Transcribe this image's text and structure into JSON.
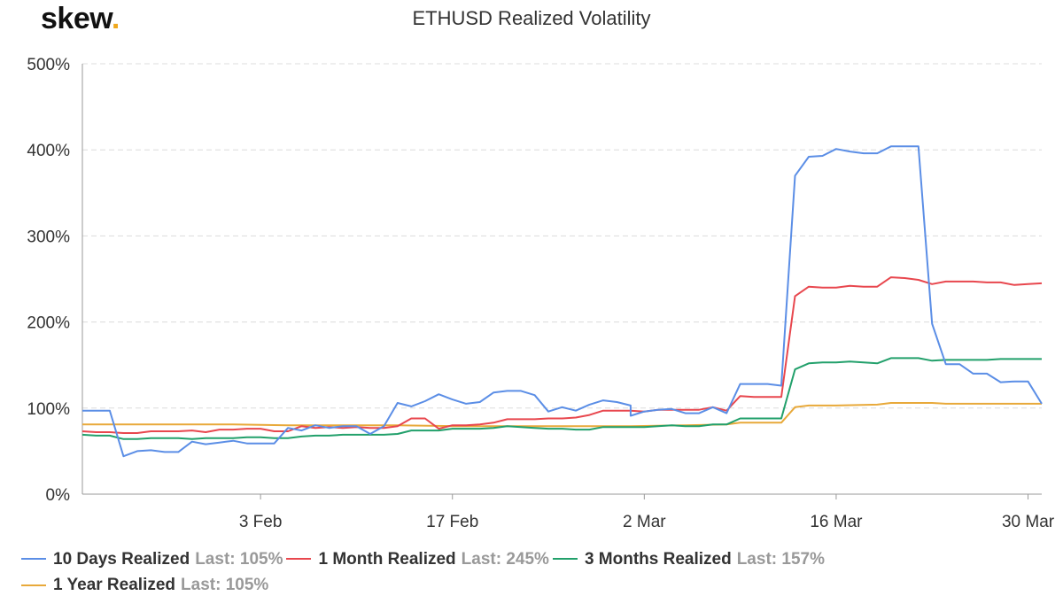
{
  "brand": {
    "name": "skew",
    "dot": "."
  },
  "chart_data": {
    "type": "line",
    "title": "ETHUSD Realized Volatility",
    "xlabel": "",
    "ylabel": "",
    "ylim": [
      0,
      500
    ],
    "y_ticks": [
      "0%",
      "100%",
      "200%",
      "300%",
      "400%",
      "500%"
    ],
    "x_ticks": [
      {
        "label": "3 Feb",
        "x": "2020-02-03"
      },
      {
        "label": "17 Feb",
        "x": "2020-02-17"
      },
      {
        "label": "2 Mar",
        "x": "2020-03-02"
      },
      {
        "label": "16 Mar",
        "x": "2020-03-16"
      },
      {
        "label": "30 Mar",
        "x": "2020-03-30"
      }
    ],
    "xlim": [
      "2020-01-21",
      "2020-03-31"
    ],
    "grid": {
      "horizontal": true,
      "style": "dashed"
    },
    "legend_position": "bottom-left",
    "series": [
      {
        "name": "10 Days Realized",
        "last": "Last: 105%",
        "color": "#5b8ee6",
        "points": [
          [
            "2020-01-21",
            97
          ],
          [
            "2020-01-22",
            97
          ],
          [
            "2020-01-23",
            97
          ],
          [
            "2020-01-24",
            44
          ],
          [
            "2020-01-25",
            50
          ],
          [
            "2020-01-26",
            51
          ],
          [
            "2020-01-27",
            49
          ],
          [
            "2020-01-28",
            49
          ],
          [
            "2020-01-29",
            61
          ],
          [
            "2020-01-30",
            58
          ],
          [
            "2020-01-31",
            60
          ],
          [
            "2020-02-01",
            62
          ],
          [
            "2020-02-02",
            59
          ],
          [
            "2020-02-03",
            59
          ],
          [
            "2020-02-04",
            59
          ],
          [
            "2020-02-05",
            77
          ],
          [
            "2020-02-06",
            74
          ],
          [
            "2020-02-07",
            80
          ],
          [
            "2020-02-08",
            77
          ],
          [
            "2020-02-09",
            79
          ],
          [
            "2020-02-10",
            79
          ],
          [
            "2020-02-11",
            70
          ],
          [
            "2020-02-12",
            79
          ],
          [
            "2020-02-13",
            106
          ],
          [
            "2020-02-14",
            102
          ],
          [
            "2020-02-15",
            108
          ],
          [
            "2020-02-16",
            116
          ],
          [
            "2020-02-17",
            110
          ],
          [
            "2020-02-18",
            105
          ],
          [
            "2020-02-19",
            107
          ],
          [
            "2020-02-20",
            118
          ],
          [
            "2020-02-21",
            120
          ],
          [
            "2020-02-22",
            120
          ],
          [
            "2020-02-23",
            115
          ],
          [
            "2020-02-24",
            96
          ],
          [
            "2020-02-25",
            101
          ],
          [
            "2020-02-26",
            97
          ],
          [
            "2020-02-27",
            104
          ],
          [
            "2020-02-28",
            109
          ],
          [
            "2020-02-29",
            107
          ],
          [
            "2020-03-01",
            103
          ],
          [
            "2020-03-01",
            91
          ],
          [
            "2020-03-02",
            96
          ],
          [
            "2020-03-03",
            98
          ],
          [
            "2020-03-04",
            99
          ],
          [
            "2020-03-05",
            94
          ],
          [
            "2020-03-06",
            94
          ],
          [
            "2020-03-07",
            101
          ],
          [
            "2020-03-08",
            94
          ],
          [
            "2020-03-09",
            128
          ],
          [
            "2020-03-10",
            128
          ],
          [
            "2020-03-11",
            128
          ],
          [
            "2020-03-12",
            126
          ],
          [
            "2020-03-13",
            370
          ],
          [
            "2020-03-14",
            392
          ],
          [
            "2020-03-15",
            393
          ],
          [
            "2020-03-16",
            401
          ],
          [
            "2020-03-17",
            398
          ],
          [
            "2020-03-18",
            396
          ],
          [
            "2020-03-19",
            396
          ],
          [
            "2020-03-20",
            404
          ],
          [
            "2020-03-21",
            404
          ],
          [
            "2020-03-22",
            404
          ],
          [
            "2020-03-23",
            198
          ],
          [
            "2020-03-24",
            151
          ],
          [
            "2020-03-25",
            151
          ],
          [
            "2020-03-26",
            140
          ],
          [
            "2020-03-27",
            140
          ],
          [
            "2020-03-28",
            130
          ],
          [
            "2020-03-29",
            131
          ],
          [
            "2020-03-30",
            131
          ],
          [
            "2020-03-31",
            105
          ]
        ]
      },
      {
        "name": "1 Month Realized",
        "last": "Last: 245%",
        "color": "#e8474e",
        "points": [
          [
            "2020-01-21",
            73
          ],
          [
            "2020-01-22",
            72
          ],
          [
            "2020-01-23",
            72
          ],
          [
            "2020-01-24",
            71
          ],
          [
            "2020-01-25",
            71
          ],
          [
            "2020-01-26",
            73
          ],
          [
            "2020-01-27",
            73
          ],
          [
            "2020-01-28",
            73
          ],
          [
            "2020-01-29",
            74
          ],
          [
            "2020-01-30",
            72
          ],
          [
            "2020-01-31",
            75
          ],
          [
            "2020-02-01",
            75
          ],
          [
            "2020-02-02",
            76
          ],
          [
            "2020-02-03",
            76
          ],
          [
            "2020-02-04",
            73
          ],
          [
            "2020-02-05",
            73
          ],
          [
            "2020-02-06",
            79
          ],
          [
            "2020-02-07",
            77
          ],
          [
            "2020-02-08",
            78
          ],
          [
            "2020-02-09",
            77
          ],
          [
            "2020-02-10",
            78
          ],
          [
            "2020-02-11",
            77
          ],
          [
            "2020-02-12",
            77
          ],
          [
            "2020-02-13",
            79
          ],
          [
            "2020-02-14",
            88
          ],
          [
            "2020-02-15",
            88
          ],
          [
            "2020-02-16",
            76
          ],
          [
            "2020-02-17",
            80
          ],
          [
            "2020-02-18",
            80
          ],
          [
            "2020-02-19",
            81
          ],
          [
            "2020-02-20",
            83
          ],
          [
            "2020-02-21",
            87
          ],
          [
            "2020-02-22",
            87
          ],
          [
            "2020-02-23",
            87
          ],
          [
            "2020-02-24",
            88
          ],
          [
            "2020-02-25",
            88
          ],
          [
            "2020-02-26",
            89
          ],
          [
            "2020-02-27",
            92
          ],
          [
            "2020-02-28",
            97
          ],
          [
            "2020-02-29",
            97
          ],
          [
            "2020-03-01",
            97
          ],
          [
            "2020-03-02",
            96
          ],
          [
            "2020-03-03",
            98
          ],
          [
            "2020-03-04",
            98
          ],
          [
            "2020-03-05",
            98
          ],
          [
            "2020-03-06",
            98
          ],
          [
            "2020-03-07",
            101
          ],
          [
            "2020-03-08",
            97
          ],
          [
            "2020-03-09",
            114
          ],
          [
            "2020-03-10",
            113
          ],
          [
            "2020-03-11",
            113
          ],
          [
            "2020-03-12",
            113
          ],
          [
            "2020-03-13",
            230
          ],
          [
            "2020-03-14",
            241
          ],
          [
            "2020-03-15",
            240
          ],
          [
            "2020-03-16",
            240
          ],
          [
            "2020-03-17",
            242
          ],
          [
            "2020-03-18",
            241
          ],
          [
            "2020-03-19",
            241
          ],
          [
            "2020-03-20",
            252
          ],
          [
            "2020-03-21",
            251
          ],
          [
            "2020-03-22",
            249
          ],
          [
            "2020-03-23",
            244
          ],
          [
            "2020-03-24",
            247
          ],
          [
            "2020-03-25",
            247
          ],
          [
            "2020-03-26",
            247
          ],
          [
            "2020-03-27",
            246
          ],
          [
            "2020-03-28",
            246
          ],
          [
            "2020-03-29",
            243
          ],
          [
            "2020-03-30",
            244
          ],
          [
            "2020-03-31",
            245
          ]
        ]
      },
      {
        "name": "3 Months Realized",
        "last": "Last: 157%",
        "color": "#22a06b",
        "points": [
          [
            "2020-01-21",
            69
          ],
          [
            "2020-01-22",
            68
          ],
          [
            "2020-01-23",
            68
          ],
          [
            "2020-01-24",
            64
          ],
          [
            "2020-01-25",
            64
          ],
          [
            "2020-01-26",
            65
          ],
          [
            "2020-01-27",
            65
          ],
          [
            "2020-01-28",
            65
          ],
          [
            "2020-01-29",
            64
          ],
          [
            "2020-01-30",
            65
          ],
          [
            "2020-01-31",
            65
          ],
          [
            "2020-02-01",
            65
          ],
          [
            "2020-02-02",
            66
          ],
          [
            "2020-02-03",
            66
          ],
          [
            "2020-02-04",
            65
          ],
          [
            "2020-02-05",
            65
          ],
          [
            "2020-02-06",
            67
          ],
          [
            "2020-02-07",
            68
          ],
          [
            "2020-02-08",
            68
          ],
          [
            "2020-02-09",
            69
          ],
          [
            "2020-02-10",
            69
          ],
          [
            "2020-02-11",
            69
          ],
          [
            "2020-02-12",
            69
          ],
          [
            "2020-02-13",
            70
          ],
          [
            "2020-02-14",
            74
          ],
          [
            "2020-02-15",
            74
          ],
          [
            "2020-02-16",
            74
          ],
          [
            "2020-02-17",
            76
          ],
          [
            "2020-02-18",
            76
          ],
          [
            "2020-02-19",
            76
          ],
          [
            "2020-02-20",
            77
          ],
          [
            "2020-02-21",
            79
          ],
          [
            "2020-02-22",
            78
          ],
          [
            "2020-02-23",
            77
          ],
          [
            "2020-02-24",
            76
          ],
          [
            "2020-02-25",
            76
          ],
          [
            "2020-02-26",
            75
          ],
          [
            "2020-02-27",
            75
          ],
          [
            "2020-02-28",
            78
          ],
          [
            "2020-02-29",
            78
          ],
          [
            "2020-03-01",
            78
          ],
          [
            "2020-03-02",
            78
          ],
          [
            "2020-03-03",
            79
          ],
          [
            "2020-03-04",
            80
          ],
          [
            "2020-03-05",
            79
          ],
          [
            "2020-03-06",
            79
          ],
          [
            "2020-03-07",
            81
          ],
          [
            "2020-03-08",
            81
          ],
          [
            "2020-03-09",
            88
          ],
          [
            "2020-03-10",
            88
          ],
          [
            "2020-03-11",
            88
          ],
          [
            "2020-03-12",
            88
          ],
          [
            "2020-03-13",
            145
          ],
          [
            "2020-03-14",
            152
          ],
          [
            "2020-03-15",
            153
          ],
          [
            "2020-03-16",
            153
          ],
          [
            "2020-03-17",
            154
          ],
          [
            "2020-03-18",
            153
          ],
          [
            "2020-03-19",
            152
          ],
          [
            "2020-03-20",
            158
          ],
          [
            "2020-03-21",
            158
          ],
          [
            "2020-03-22",
            158
          ],
          [
            "2020-03-23",
            155
          ],
          [
            "2020-03-24",
            156
          ],
          [
            "2020-03-25",
            156
          ],
          [
            "2020-03-26",
            156
          ],
          [
            "2020-03-27",
            156
          ],
          [
            "2020-03-28",
            157
          ],
          [
            "2020-03-29",
            157
          ],
          [
            "2020-03-30",
            157
          ],
          [
            "2020-03-31",
            157
          ]
        ]
      },
      {
        "name": "1 Year Realized",
        "last": "Last: 105%",
        "color": "#e8a93a",
        "points": [
          [
            "2020-01-21",
            81
          ],
          [
            "2020-01-24",
            81
          ],
          [
            "2020-01-28",
            81
          ],
          [
            "2020-02-01",
            81
          ],
          [
            "2020-02-05",
            80
          ],
          [
            "2020-02-09",
            80
          ],
          [
            "2020-02-13",
            80
          ],
          [
            "2020-02-17",
            79
          ],
          [
            "2020-02-21",
            79
          ],
          [
            "2020-02-25",
            79
          ],
          [
            "2020-03-01",
            79
          ],
          [
            "2020-03-05",
            80
          ],
          [
            "2020-03-08",
            81
          ],
          [
            "2020-03-09",
            83
          ],
          [
            "2020-03-12",
            83
          ],
          [
            "2020-03-13",
            101
          ],
          [
            "2020-03-14",
            103
          ],
          [
            "2020-03-16",
            103
          ],
          [
            "2020-03-19",
            104
          ],
          [
            "2020-03-20",
            106
          ],
          [
            "2020-03-23",
            106
          ],
          [
            "2020-03-24",
            105
          ],
          [
            "2020-03-27",
            105
          ],
          [
            "2020-03-29",
            105
          ],
          [
            "2020-03-30",
            105
          ],
          [
            "2020-03-31",
            105
          ]
        ]
      }
    ]
  }
}
